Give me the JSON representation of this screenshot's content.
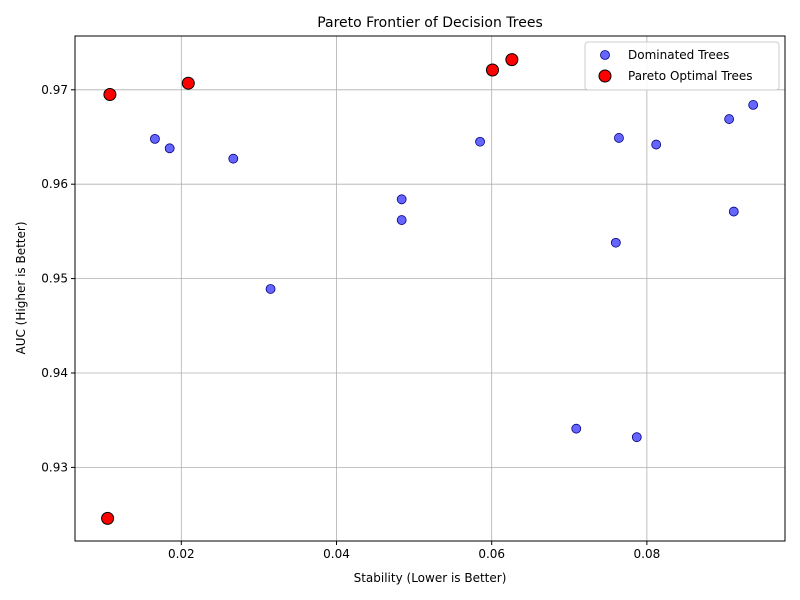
{
  "chart_data": {
    "type": "scatter",
    "title": "Pareto Frontier of Decision Trees",
    "xlabel": "Stability (Lower is Better)",
    "ylabel": "AUC (Higher is Better)",
    "xlim": [
      0.0063,
      0.0978
    ],
    "ylim": [
      0.9222,
      0.9757
    ],
    "xticks": [
      0.02,
      0.04,
      0.06,
      0.08
    ],
    "xtick_labels": [
      "0.02",
      "0.04",
      "0.06",
      "0.08"
    ],
    "yticks": [
      0.93,
      0.94,
      0.95,
      0.96,
      0.97
    ],
    "ytick_labels": [
      "0.93",
      "0.94",
      "0.95",
      "0.96",
      "0.97"
    ],
    "grid": true,
    "legend_position": "top-right",
    "series": [
      {
        "name": "Dominated Trees",
        "color": "#0000ff",
        "points": [
          {
            "x": 0.0166,
            "y": 0.9648
          },
          {
            "x": 0.0185,
            "y": 0.9638
          },
          {
            "x": 0.0267,
            "y": 0.9627
          },
          {
            "x": 0.0315,
            "y": 0.9489
          },
          {
            "x": 0.0484,
            "y": 0.9584
          },
          {
            "x": 0.0484,
            "y": 0.9562
          },
          {
            "x": 0.0585,
            "y": 0.9645
          },
          {
            "x": 0.0709,
            "y": 0.9341
          },
          {
            "x": 0.076,
            "y": 0.9538
          },
          {
            "x": 0.0764,
            "y": 0.9649
          },
          {
            "x": 0.0787,
            "y": 0.9332
          },
          {
            "x": 0.0812,
            "y": 0.9642
          },
          {
            "x": 0.0906,
            "y": 0.9669
          },
          {
            "x": 0.0912,
            "y": 0.9571
          },
          {
            "x": 0.0937,
            "y": 0.9684
          }
        ]
      },
      {
        "name": "Pareto Optimal Trees",
        "color": "#ff0000",
        "points": [
          {
            "x": 0.0105,
            "y": 0.9246
          },
          {
            "x": 0.0108,
            "y": 0.9695
          },
          {
            "x": 0.0209,
            "y": 0.9707
          },
          {
            "x": 0.0601,
            "y": 0.9721
          },
          {
            "x": 0.0626,
            "y": 0.9732
          }
        ]
      }
    ]
  }
}
